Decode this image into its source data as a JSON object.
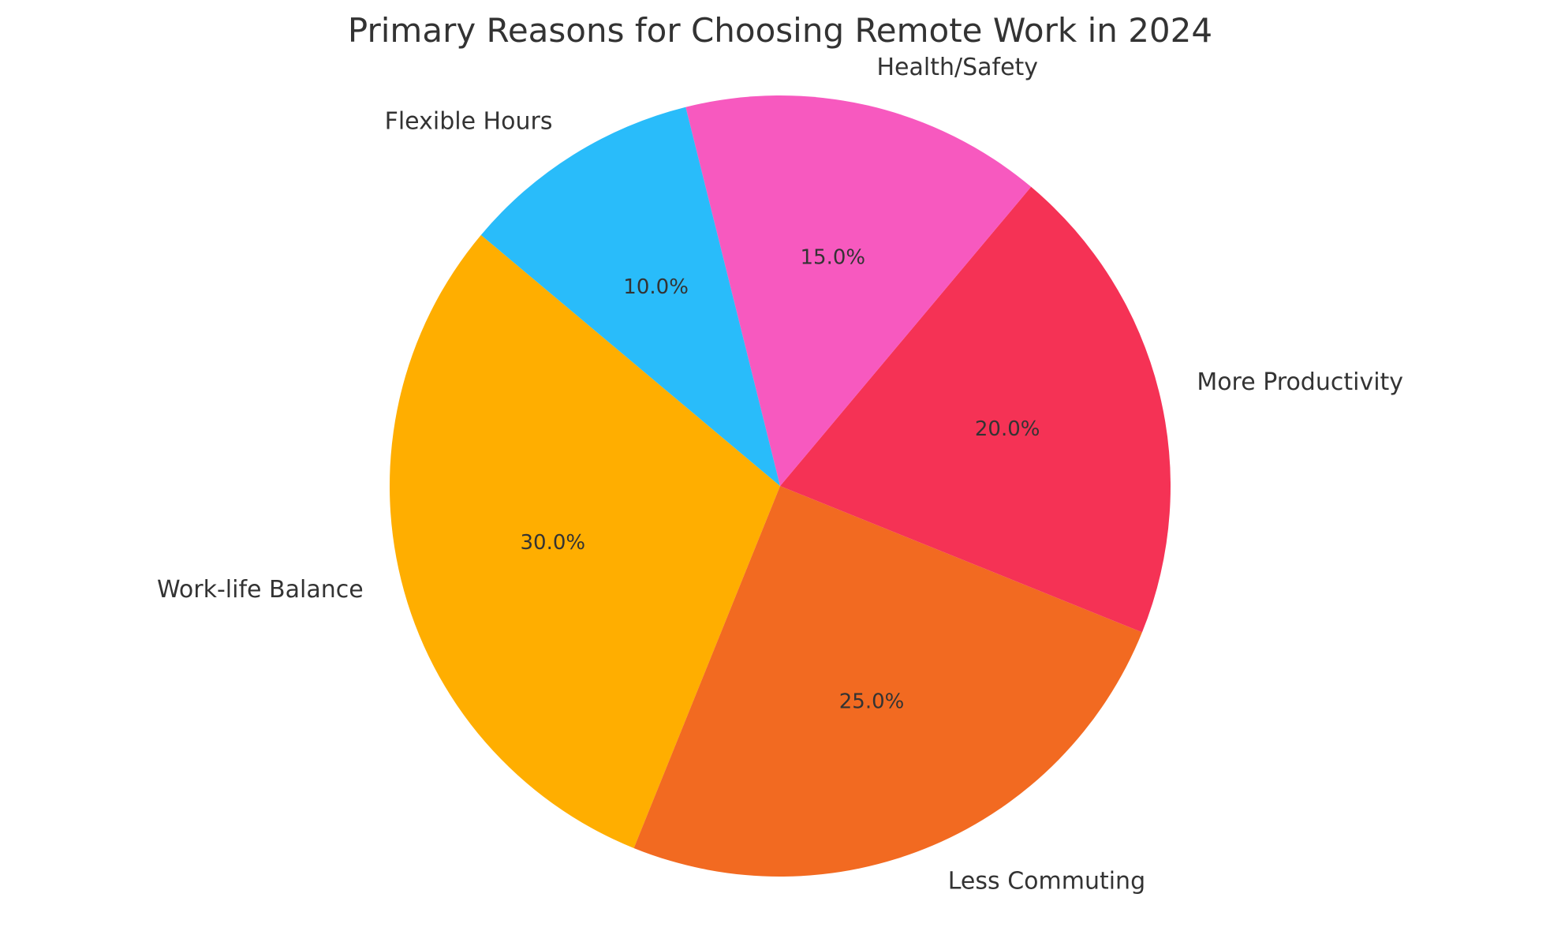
{
  "chart_data": {
    "type": "pie",
    "title": "Primary Reasons for Choosing Remote Work in 2024",
    "categories": [
      "Work-life Balance",
      "Less Commuting",
      "More Productivity",
      "Health/Safety",
      "Flexible Hours"
    ],
    "values": [
      30,
      25,
      20,
      15,
      10
    ],
    "percent_labels": [
      "30.0%",
      "25.0%",
      "20.0%",
      "15.0%",
      "10.0%"
    ],
    "colors": [
      "#ffae00",
      "#f26a21",
      "#f53255",
      "#f759bf",
      "#29bcfa"
    ],
    "start_angle_deg": 140,
    "direction": "counterclockwise",
    "legend": "none"
  }
}
